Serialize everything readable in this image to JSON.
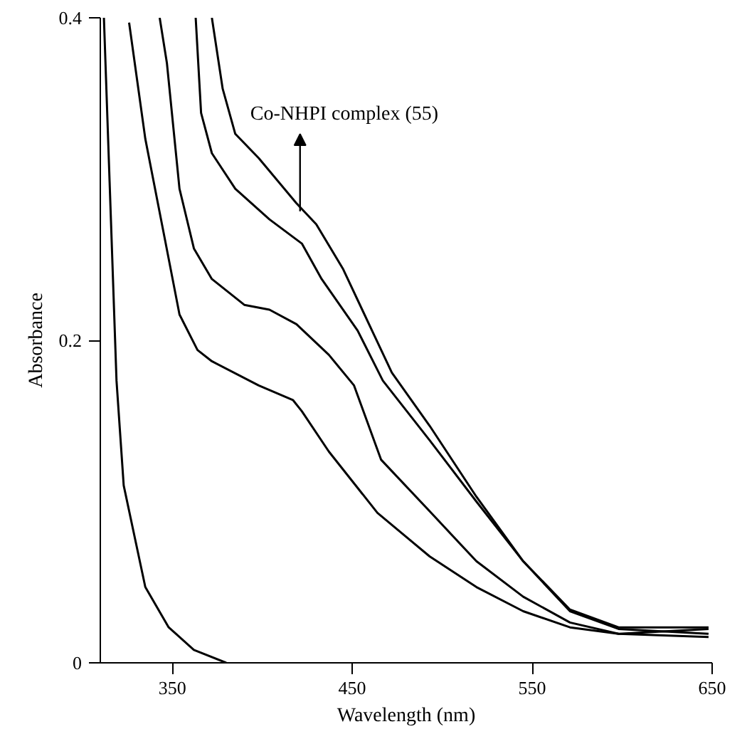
{
  "chart_data": {
    "type": "line",
    "xlabel": "Wavelength (nm)",
    "ylabel": "Absorbance",
    "xlim": [
      310,
      650
    ],
    "ylim": [
      0,
      0.4
    ],
    "xticks": [
      350,
      450,
      550,
      650
    ],
    "yticks": [
      0,
      0.2,
      0.4
    ],
    "marker": "none",
    "line_style": "solid",
    "annotations": [
      {
        "text": "Co-NHPI complex (55)",
        "x": 421,
        "y": 0.28
      }
    ],
    "series": [
      {
        "color": "#000000",
        "x": [
          312,
          319,
          323,
          335,
          348,
          362,
          380
        ],
        "values": [
          0.4,
          0.175,
          0.11,
          0.047,
          0.022,
          0.008,
          0
        ]
      },
      {
        "color": "#000000",
        "x": [
          326,
          335,
          346,
          354,
          364,
          372,
          398,
          417,
          422,
          437,
          464,
          493,
          519,
          545,
          571,
          598,
          648
        ],
        "values": [
          0.397,
          0.325,
          0.262,
          0.216,
          0.194,
          0.187,
          0.172,
          0.163,
          0.156,
          0.131,
          0.093,
          0.066,
          0.047,
          0.032,
          0.022,
          0.018,
          0.021
        ]
      },
      {
        "color": "#000000",
        "x": [
          343,
          347,
          354,
          362,
          372,
          390,
          404,
          419,
          437,
          451,
          466,
          493,
          519,
          545,
          571,
          598,
          648
        ],
        "values": [
          0.4,
          0.372,
          0.294,
          0.257,
          0.238,
          0.222,
          0.219,
          0.21,
          0.191,
          0.172,
          0.126,
          0.094,
          0.063,
          0.041,
          0.025,
          0.018,
          0.016
        ]
      },
      {
        "color": "#000000",
        "x": [
          363,
          366,
          372,
          385,
          404,
          422,
          433,
          453,
          467,
          493,
          519,
          545,
          571,
          598,
          648
        ],
        "values": [
          0.4,
          0.341,
          0.316,
          0.294,
          0.275,
          0.26,
          0.238,
          0.206,
          0.175,
          0.138,
          0.1,
          0.063,
          0.032,
          0.021,
          0.018
        ]
      },
      {
        "color": "#000000",
        "x": [
          372,
          378,
          385,
          398,
          419,
          430,
          445,
          461,
          472,
          493,
          519,
          545,
          571,
          598,
          648
        ],
        "values": [
          0.4,
          0.356,
          0.328,
          0.313,
          0.285,
          0.272,
          0.244,
          0.206,
          0.18,
          0.147,
          0.103,
          0.063,
          0.033,
          0.022,
          0.022
        ]
      }
    ]
  }
}
